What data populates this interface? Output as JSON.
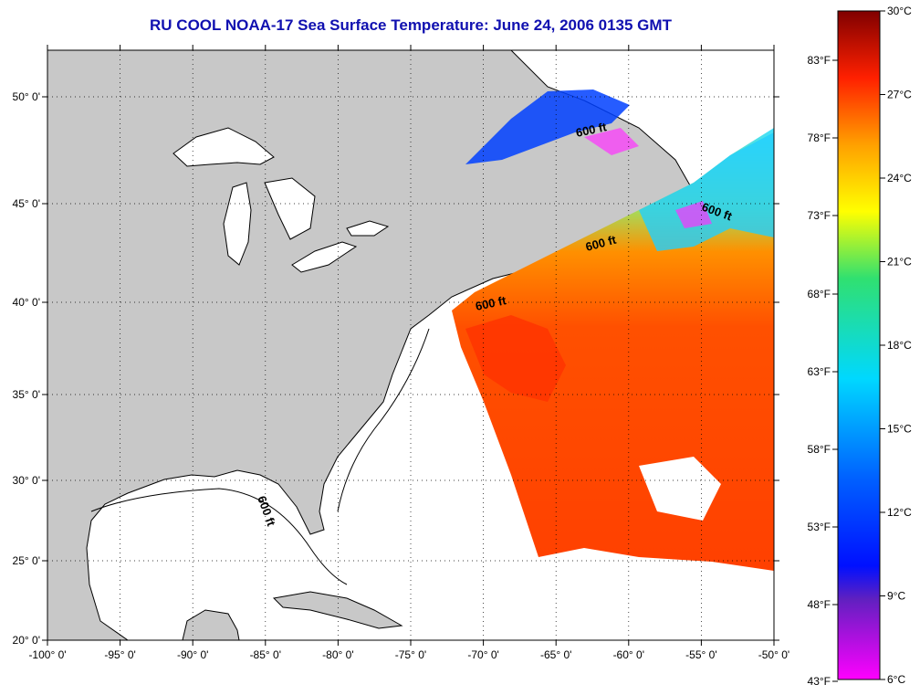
{
  "title": "RU COOL  NOAA-17  Sea Surface Temperature:  June 24, 2006 0135 GMT",
  "longitude_ticks": [
    "-100° 0'",
    "-95° 0'",
    "-90° 0'",
    "-85° 0'",
    "-80° 0'",
    "-75° 0'",
    "-70° 0'",
    "-65° 0'",
    "-60° 0'",
    "-55° 0'",
    "-50° 0'"
  ],
  "latitude_ticks": [
    "20° 0'",
    "25° 0'",
    "30° 0'",
    "35° 0'",
    "40° 0'",
    "45° 0'",
    "50° 0'"
  ],
  "isobath_label": "600 ft",
  "colorbar": {
    "celsius": [
      "30°C",
      "27°C",
      "24°C",
      "21°C",
      "18°C",
      "15°C",
      "12°C",
      "9°C",
      "6°C"
    ],
    "fahrenheit": [
      "83°F",
      "78°F",
      "73°F",
      "68°F",
      "63°F",
      "58°F",
      "53°F",
      "48°F",
      "43°F"
    ]
  },
  "colors": {
    "title": "#1010b0",
    "land": "#c8c8c8",
    "warm": "#ff3000",
    "cool": "#00c8ff",
    "cold": "#0030ff"
  }
}
